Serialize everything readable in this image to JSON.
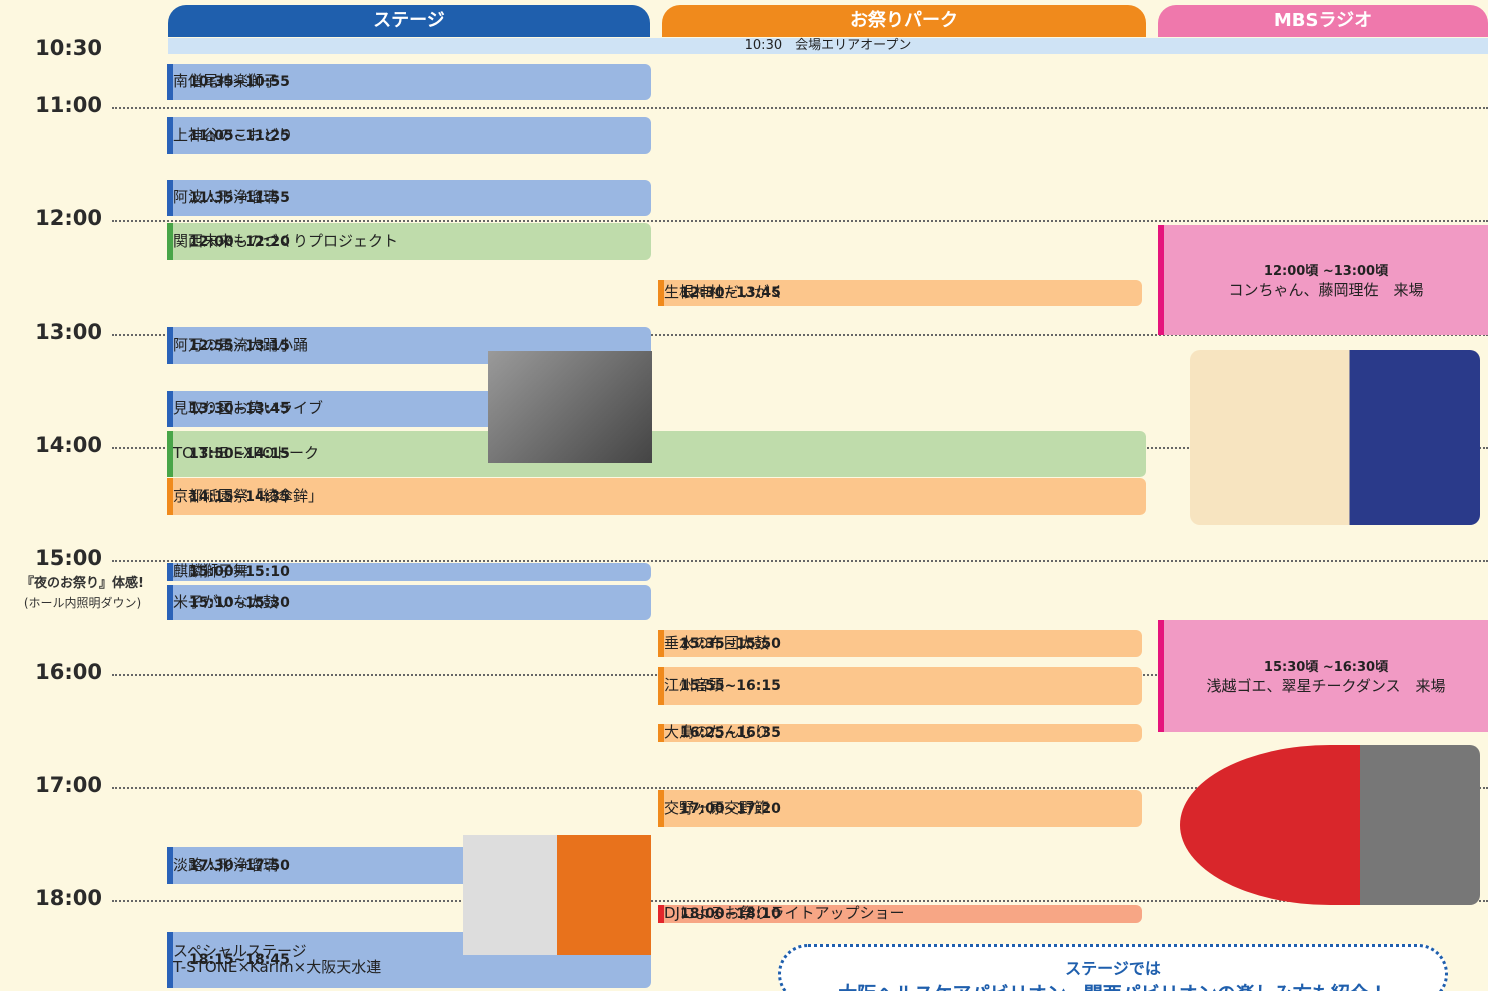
{
  "header": {
    "columns": [
      "ステージ",
      "お祭りパーク",
      "MBSラジオ"
    ]
  },
  "opening": {
    "time": "10:30",
    "label": "会場エリアオープン"
  },
  "times": [
    "10:30",
    "11:00",
    "12:00",
    "13:00",
    "14:00",
    "15:00",
    "16:00",
    "17:00",
    "18:00"
  ],
  "note": {
    "title": "『夜のお祭り』体感!",
    "subtitle": "(ホール内照明ダウン)"
  },
  "stage": [
    {
      "time": "10:35~10:55",
      "title": "南僧尾神楽獅子"
    },
    {
      "time": "11:05~11:25",
      "title": "上神谷のこおどり"
    },
    {
      "time": "11:35~11:55",
      "title": "阿波人形浄瑠璃"
    },
    {
      "time": "12:00~12:20",
      "title": "関西未来ものづくりプロジェクト"
    },
    {
      "time": "12:55~13:15",
      "title": "阿万の風流大踊小踊"
    },
    {
      "time": "13:30~13:45",
      "title": "見取り図お笑いライブ"
    },
    {
      "time": "13:50~14:15",
      "title": "TO THE EXPOトーク"
    },
    {
      "time": "14:15~14:35",
      "title": "京都祇園祭「綾傘鉾」"
    },
    {
      "time": "15:00~15:10",
      "title": "麒麟獅子舞"
    },
    {
      "time": "15:10~15:30",
      "title": "米子がいな太鼓"
    },
    {
      "time": "17:30~17:50",
      "title": "淡路人形浄瑠璃"
    },
    {
      "time": "18:15~18:45",
      "title": "スペシャルステージ",
      "subtitle": "T-STONE×Karim×大阪天水連"
    }
  ],
  "park": [
    {
      "time": "12:30~13:45",
      "title": "生根神社だいがく"
    },
    {
      "time": "15:35~15:50",
      "title": "垂水の布団太鼓"
    },
    {
      "time": "15:55~16:15",
      "title": "江州音頭"
    },
    {
      "time": "16:25~16:35",
      "title": "大鳥のだんじり"
    },
    {
      "time": "17:00~17:20",
      "title": "交野ヶ原交野節"
    },
    {
      "time": "18:00~18:10",
      "title": "DJによるお祭りライトアップショー"
    }
  ],
  "radio": [
    {
      "time": "12:00頃 ~13:00頃",
      "title": "コンちゃん、藤岡理佐　来場"
    },
    {
      "time": "15:30頃 ~16:30頃",
      "title": "浅越ゴエ、翠星チークダンス　来場"
    }
  ],
  "footer": {
    "title": "ステージでは",
    "text": "大阪ヘルスケアパビリオン、関西パビリオンの楽しみ方も紹介！"
  }
}
